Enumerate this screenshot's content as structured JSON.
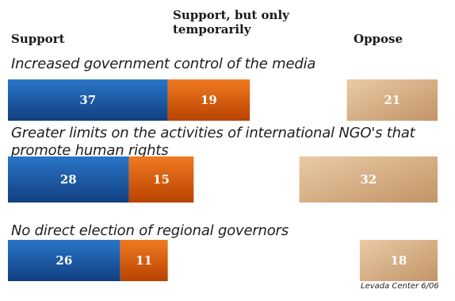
{
  "chart_data": {
    "type": "bar",
    "orientation": "horizontal",
    "stacked": "partial",
    "legend": {
      "support": "Support",
      "temporary": "Support, but only temporarily",
      "oppose": "Oppose"
    },
    "categories": [
      "Increased government control of the media",
      "Greater limits on the activities of international NGO's that promote human rights",
      "No direct election of regional governors"
    ],
    "series": [
      {
        "name": "Support",
        "values": [
          37,
          28,
          26
        ],
        "color": "#1b5fae"
      },
      {
        "name": "Support, but only temporarily",
        "values": [
          19,
          15,
          11
        ],
        "color": "#e0620f"
      },
      {
        "name": "Oppose",
        "values": [
          21,
          32,
          18
        ],
        "color": "#dcb68e"
      }
    ],
    "source": "Levada Center 6/06"
  }
}
